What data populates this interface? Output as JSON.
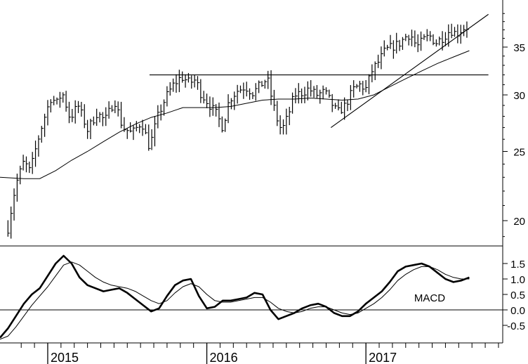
{
  "chart_data": [
    {
      "type": "ohlc",
      "panel": "price",
      "ylim": [
        18.5,
        40
      ],
      "y_ticks": [
        {
          "value": 20,
          "label": "20"
        },
        {
          "value": 25,
          "label": "25"
        },
        {
          "value": 30,
          "label": "30"
        },
        {
          "value": 35,
          "label": "35"
        }
      ],
      "grid": false,
      "price_path": [
        [
          2014.75,
          19.5
        ],
        [
          2014.8,
          22.5
        ],
        [
          2014.85,
          24.2
        ],
        [
          2014.89,
          23.4
        ],
        [
          2014.92,
          25.0
        ],
        [
          2014.97,
          27.5
        ],
        [
          2015.02,
          29.7
        ],
        [
          2015.06,
          29.2
        ],
        [
          2015.09,
          30.3
        ],
        [
          2015.14,
          27.8
        ],
        [
          2015.19,
          29.0
        ],
        [
          2015.25,
          26.8
        ],
        [
          2015.31,
          28.3
        ],
        [
          2015.36,
          27.6
        ],
        [
          2015.42,
          29.5
        ],
        [
          2015.47,
          27.0
        ],
        [
          2015.53,
          26.5
        ],
        [
          2015.59,
          27.5
        ],
        [
          2015.64,
          25.3
        ],
        [
          2015.69,
          27.9
        ],
        [
          2015.74,
          29.7
        ],
        [
          2015.79,
          31.0
        ],
        [
          2015.84,
          31.8
        ],
        [
          2015.89,
          31.2
        ],
        [
          2015.93,
          31.5
        ],
        [
          2015.96,
          30.2
        ],
        [
          2016.02,
          29.0
        ],
        [
          2016.06,
          28.2
        ],
        [
          2016.1,
          27.0
        ],
        [
          2016.14,
          29.5
        ],
        [
          2016.19,
          30.4
        ],
        [
          2016.24,
          30.8
        ],
        [
          2016.29,
          30.2
        ],
        [
          2016.34,
          31.0
        ],
        [
          2016.38,
          31.6
        ],
        [
          2016.41,
          29.5
        ],
        [
          2016.44,
          27.8
        ],
        [
          2016.47,
          26.7
        ],
        [
          2016.51,
          28.0
        ],
        [
          2016.55,
          30.0
        ],
        [
          2016.6,
          30.2
        ],
        [
          2016.64,
          30.6
        ],
        [
          2016.69,
          30.0
        ],
        [
          2016.74,
          30.3
        ],
        [
          2016.78,
          29.3
        ],
        [
          2016.82,
          28.3
        ],
        [
          2016.87,
          29.0
        ],
        [
          2016.92,
          30.5
        ],
        [
          2016.96,
          31.0
        ],
        [
          2017.0,
          30.6
        ],
        [
          2017.04,
          32.5
        ],
        [
          2017.08,
          33.4
        ],
        [
          2017.12,
          34.6
        ],
        [
          2017.16,
          35.0
        ],
        [
          2017.21,
          35.4
        ],
        [
          2017.25,
          36.2
        ],
        [
          2017.28,
          36.5
        ],
        [
          2017.32,
          35.0
        ],
        [
          2017.36,
          35.8
        ],
        [
          2017.4,
          36.3
        ],
        [
          2017.44,
          35.5
        ],
        [
          2017.49,
          36.2
        ],
        [
          2017.53,
          37.0
        ],
        [
          2017.57,
          36.5
        ],
        [
          2017.61,
          37.2
        ],
        [
          2017.65,
          37.4
        ]
      ],
      "moving_average": [
        [
          2014.7,
          23.0
        ],
        [
          2014.85,
          22.9
        ],
        [
          2014.95,
          22.9
        ],
        [
          2015.05,
          23.5
        ],
        [
          2015.15,
          24.3
        ],
        [
          2015.25,
          25.0
        ],
        [
          2015.35,
          25.8
        ],
        [
          2015.45,
          26.6
        ],
        [
          2015.55,
          27.3
        ],
        [
          2015.65,
          27.9
        ],
        [
          2015.75,
          28.3
        ],
        [
          2015.85,
          28.8
        ],
        [
          2015.95,
          28.8
        ],
        [
          2016.05,
          28.8
        ],
        [
          2016.15,
          28.9
        ],
        [
          2016.25,
          29.2
        ],
        [
          2016.35,
          29.5
        ],
        [
          2016.45,
          29.6
        ],
        [
          2016.55,
          29.6
        ],
        [
          2016.65,
          29.7
        ],
        [
          2016.75,
          29.6
        ],
        [
          2016.85,
          29.5
        ],
        [
          2016.95,
          29.6
        ],
        [
          2017.05,
          30.0
        ],
        [
          2017.15,
          30.8
        ],
        [
          2017.25,
          31.6
        ],
        [
          2017.35,
          32.4
        ],
        [
          2017.45,
          33.2
        ],
        [
          2017.55,
          33.9
        ],
        [
          2017.65,
          34.6
        ]
      ],
      "lines": [
        {
          "name": "resistance",
          "from": [
            2015.64,
            32.0
          ],
          "to": [
            2017.77,
            32.0
          ]
        },
        {
          "name": "trendline",
          "from": [
            2016.78,
            27.0
          ],
          "to": [
            2017.77,
            38.9
          ]
        }
      ]
    },
    {
      "type": "line",
      "panel": "indicator",
      "label": "MACD",
      "ylim": [
        -1.0,
        1.9
      ],
      "y_ticks": [
        {
          "value": 1.5,
          "label": "1.5"
        },
        {
          "value": 1.0,
          "label": "1.0"
        },
        {
          "value": 0.5,
          "label": "0.5"
        },
        {
          "value": 0.0,
          "label": "0.0"
        },
        {
          "value": -0.5,
          "label": "-0.5"
        }
      ],
      "zero_line": 0.0,
      "series": [
        {
          "style": "thick",
          "x": [
            2014.7,
            2014.75,
            2014.8,
            2014.85,
            2014.9,
            2014.95,
            2015.0,
            2015.05,
            2015.1,
            2015.15,
            2015.2,
            2015.25,
            2015.3,
            2015.35,
            2015.4,
            2015.45,
            2015.5,
            2015.55,
            2015.6,
            2015.65,
            2015.7,
            2015.75,
            2015.8,
            2015.85,
            2015.9,
            2015.95,
            2016.0,
            2016.05,
            2016.1,
            2016.15,
            2016.2,
            2016.25,
            2016.3,
            2016.35,
            2016.4,
            2016.45,
            2016.5,
            2016.55,
            2016.6,
            2016.65,
            2016.7,
            2016.75,
            2016.8,
            2016.85,
            2016.9,
            2016.95,
            2017.0,
            2017.05,
            2017.1,
            2017.15,
            2017.2,
            2017.25,
            2017.3,
            2017.35,
            2017.4,
            2017.45,
            2017.5,
            2017.55,
            2017.6,
            2017.65
          ],
          "values": [
            -0.9,
            -0.6,
            -0.2,
            0.2,
            0.5,
            0.7,
            1.1,
            1.5,
            1.75,
            1.5,
            1.05,
            0.8,
            0.7,
            0.6,
            0.65,
            0.7,
            0.55,
            0.35,
            0.15,
            -0.05,
            0.05,
            0.45,
            0.8,
            0.95,
            1.0,
            0.45,
            0.05,
            0.1,
            0.3,
            0.3,
            0.35,
            0.4,
            0.55,
            0.5,
            0.0,
            -0.3,
            -0.2,
            -0.1,
            0.05,
            0.15,
            0.2,
            0.1,
            -0.1,
            -0.2,
            -0.2,
            -0.05,
            0.2,
            0.4,
            0.6,
            0.9,
            1.25,
            1.4,
            1.45,
            1.5,
            1.4,
            1.2,
            1.0,
            0.9,
            0.95,
            1.05
          ]
        },
        {
          "style": "thin",
          "x": [
            2014.7,
            2014.75,
            2014.8,
            2014.85,
            2014.9,
            2014.95,
            2015.0,
            2015.05,
            2015.1,
            2015.15,
            2015.2,
            2015.25,
            2015.3,
            2015.35,
            2015.4,
            2015.45,
            2015.5,
            2015.55,
            2015.6,
            2015.65,
            2015.7,
            2015.75,
            2015.8,
            2015.85,
            2015.9,
            2015.95,
            2016.0,
            2016.05,
            2016.1,
            2016.15,
            2016.2,
            2016.25,
            2016.3,
            2016.35,
            2016.4,
            2016.45,
            2016.5,
            2016.55,
            2016.6,
            2016.65,
            2016.7,
            2016.75,
            2016.8,
            2016.85,
            2016.9,
            2016.95,
            2017.0,
            2017.05,
            2017.1,
            2017.15,
            2017.2,
            2017.25,
            2017.3,
            2017.35,
            2017.4,
            2017.45,
            2017.5,
            2017.55,
            2017.6,
            2017.65
          ],
          "values": [
            -0.95,
            -0.85,
            -0.55,
            -0.2,
            0.15,
            0.45,
            0.75,
            1.1,
            1.45,
            1.55,
            1.45,
            1.25,
            1.05,
            0.9,
            0.8,
            0.75,
            0.7,
            0.6,
            0.45,
            0.3,
            0.2,
            0.3,
            0.55,
            0.75,
            0.85,
            0.75,
            0.5,
            0.3,
            0.25,
            0.25,
            0.3,
            0.35,
            0.4,
            0.4,
            0.25,
            0.05,
            -0.05,
            -0.1,
            -0.05,
            0.05,
            0.1,
            0.1,
            0.0,
            -0.1,
            -0.15,
            -0.1,
            0.05,
            0.2,
            0.4,
            0.65,
            0.95,
            1.15,
            1.3,
            1.4,
            1.4,
            1.3,
            1.15,
            1.05,
            1.0,
            1.0
          ]
        }
      ]
    }
  ],
  "x_axis": {
    "xlim": [
      2014.7,
      2017.86
    ],
    "ticks": [
      {
        "value": 2015,
        "label": "2015"
      },
      {
        "value": 2016,
        "label": "2016"
      },
      {
        "value": 2017,
        "label": "2017"
      }
    ],
    "minor_step": 0.0833333
  }
}
